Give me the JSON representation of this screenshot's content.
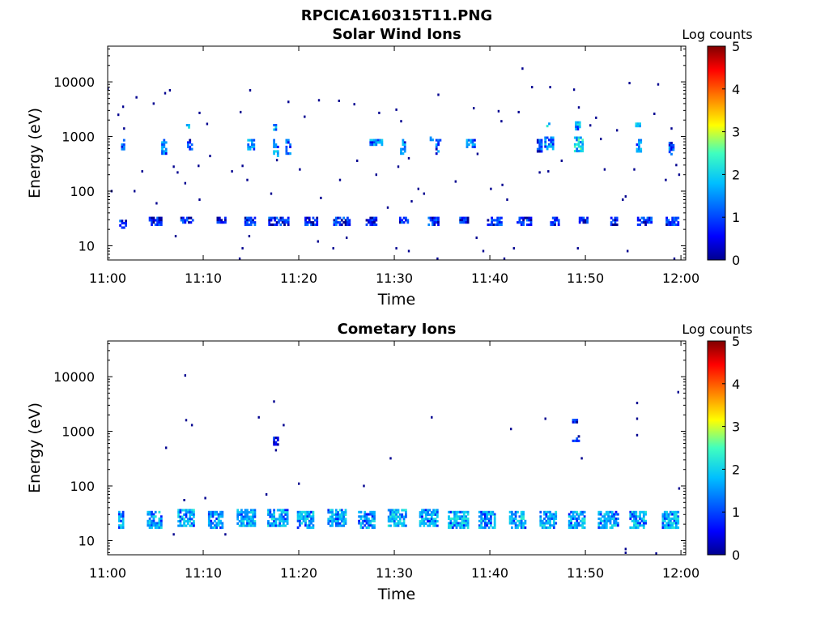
{
  "figure": {
    "title": "RPCICA160315T11.PNG"
  },
  "colorscale": {
    "stops": [
      "#00008f",
      "#0000ff",
      "#00bfff",
      "#40ffbf",
      "#ffff00",
      "#ff8000",
      "#ff0000",
      "#800000"
    ],
    "point_color": "#00008f"
  },
  "chart_data": [
    {
      "type": "heatmap",
      "title": "Solar Wind Ions",
      "xlabel": "Time",
      "ylabel": "Energy (eV)",
      "y_scale": "log",
      "ylim": [
        5.5,
        45000
      ],
      "xlim_minutes_after_11_00": [
        0,
        60.5
      ],
      "x_ticks": [
        "11:00",
        "11:10",
        "11:20",
        "11:30",
        "11:40",
        "11:50",
        "12:00"
      ],
      "y_ticks": [
        "10",
        "100",
        "1000",
        "10000"
      ],
      "colorbar": {
        "label": "Log counts",
        "range": [
          0,
          5
        ],
        "ticks": [
          "0",
          "1",
          "2",
          "3",
          "4",
          "5"
        ]
      },
      "clusters": [
        {
          "t": [
            1.2,
            1.8
          ],
          "e": [
            22,
            30
          ],
          "log_counts": 1.0
        },
        {
          "t": [
            4.3,
            5.6
          ],
          "e": [
            24,
            34
          ],
          "log_counts": 0.9
        },
        {
          "t": [
            7.6,
            8.8
          ],
          "e": [
            26,
            34
          ],
          "log_counts": 1.0
        },
        {
          "t": [
            11.4,
            12.2
          ],
          "e": [
            26,
            34
          ],
          "log_counts": 0.9
        },
        {
          "t": [
            14.3,
            15.3
          ],
          "e": [
            24,
            34
          ],
          "log_counts": 1.0
        },
        {
          "t": [
            16.8,
            18.9
          ],
          "e": [
            24,
            34
          ],
          "log_counts": 1.0
        },
        {
          "t": [
            20.6,
            21.8
          ],
          "e": [
            24,
            34
          ],
          "log_counts": 1.0
        },
        {
          "t": [
            23.6,
            25.3
          ],
          "e": [
            24,
            34
          ],
          "log_counts": 1.0
        },
        {
          "t": [
            27.0,
            28.0
          ],
          "e": [
            24,
            34
          ],
          "log_counts": 0.9
        },
        {
          "t": [
            30.5,
            31.3
          ],
          "e": [
            26,
            34
          ],
          "log_counts": 1.0
        },
        {
          "t": [
            33.5,
            34.6
          ],
          "e": [
            24,
            34
          ],
          "log_counts": 1.0
        },
        {
          "t": [
            36.8,
            37.6
          ],
          "e": [
            26,
            34
          ],
          "log_counts": 0.9
        },
        {
          "t": [
            39.5,
            41.2
          ],
          "e": [
            24,
            34
          ],
          "log_counts": 1.0
        },
        {
          "t": [
            42.8,
            44.2
          ],
          "e": [
            24,
            34
          ],
          "log_counts": 1.0
        },
        {
          "t": [
            46.3,
            47.2
          ],
          "e": [
            24,
            34
          ],
          "log_counts": 0.9
        },
        {
          "t": [
            49.3,
            50.2
          ],
          "e": [
            26,
            34
          ],
          "log_counts": 0.9
        },
        {
          "t": [
            52.6,
            53.3
          ],
          "e": [
            24,
            34
          ],
          "log_counts": 0.9
        },
        {
          "t": [
            55.4,
            56.9
          ],
          "e": [
            24,
            34
          ],
          "log_counts": 1.0
        },
        {
          "t": [
            58.4,
            59.6
          ],
          "e": [
            24,
            34
          ],
          "log_counts": 1.0
        },
        {
          "t": [
            1.4,
            1.7
          ],
          "e": [
            600,
            900
          ],
          "log_counts": 1.1
        },
        {
          "t": [
            5.6,
            6.0
          ],
          "e": [
            500,
            900
          ],
          "log_counts": 1.4
        },
        {
          "t": [
            8.3,
            8.7
          ],
          "e": [
            600,
            900
          ],
          "log_counts": 1.1
        },
        {
          "t": [
            14.6,
            15.3
          ],
          "e": [
            600,
            900
          ],
          "log_counts": 1.6
        },
        {
          "t": [
            17.3,
            17.7
          ],
          "e": [
            450,
            900
          ],
          "log_counts": 1.8
        },
        {
          "t": [
            18.6,
            19.0
          ],
          "e": [
            500,
            900
          ],
          "log_counts": 1.3
        },
        {
          "t": [
            27.4,
            28.6
          ],
          "e": [
            700,
            900
          ],
          "log_counts": 1.6
        },
        {
          "t": [
            30.6,
            31.0
          ],
          "e": [
            500,
            900
          ],
          "log_counts": 1.5
        },
        {
          "t": [
            33.7,
            34.0
          ],
          "e": [
            850,
            1100
          ],
          "log_counts": 1.7
        },
        {
          "t": [
            34.3,
            34.8
          ],
          "e": [
            500,
            900
          ],
          "log_counts": 1.3
        },
        {
          "t": [
            37.5,
            38.4
          ],
          "e": [
            650,
            900
          ],
          "log_counts": 1.5
        },
        {
          "t": [
            44.9,
            45.3
          ],
          "e": [
            550,
            900
          ],
          "log_counts": 1.2
        },
        {
          "t": [
            45.7,
            46.5
          ],
          "e": [
            600,
            1000
          ],
          "log_counts": 1.8
        },
        {
          "t": [
            48.8,
            49.6
          ],
          "e": [
            550,
            1000
          ],
          "log_counts": 2.3
        },
        {
          "t": [
            55.3,
            55.8
          ],
          "e": [
            550,
            900
          ],
          "log_counts": 1.7
        },
        {
          "t": [
            58.7,
            59.1
          ],
          "e": [
            500,
            800
          ],
          "log_counts": 1.3
        },
        {
          "t": [
            45.9,
            46.2
          ],
          "e": [
            1500,
            1800
          ],
          "log_counts": 1.9
        },
        {
          "t": [
            48.9,
            49.3
          ],
          "e": [
            1400,
            1900
          ],
          "log_counts": 1.9
        },
        {
          "t": [
            55.2,
            55.6
          ],
          "e": [
            1500,
            1800
          ],
          "log_counts": 1.8
        },
        {
          "t": [
            8.2,
            8.4
          ],
          "e": [
            1500,
            1700
          ],
          "log_counts": 1.9
        },
        {
          "t": [
            17.3,
            17.6
          ],
          "e": [
            1400,
            1700
          ],
          "log_counts": 1.6
        }
      ],
      "points": [
        [
          0.0,
          7500
        ],
        [
          0.4,
          100
        ],
        [
          1.1,
          2500
        ],
        [
          1.6,
          3500
        ],
        [
          1.7,
          1400
        ],
        [
          3.0,
          5200
        ],
        [
          4.8,
          4000
        ],
        [
          6.0,
          6200
        ],
        [
          6.5,
          7000
        ],
        [
          9.6,
          2700
        ],
        [
          10.4,
          1700
        ],
        [
          13.9,
          2800
        ],
        [
          14.9,
          7000
        ],
        [
          18.9,
          4300
        ],
        [
          20.6,
          2300
        ],
        [
          22.1,
          4600
        ],
        [
          24.2,
          4500
        ],
        [
          25.8,
          3900
        ],
        [
          28.4,
          2700
        ],
        [
          30.2,
          3100
        ],
        [
          30.7,
          1900
        ],
        [
          34.6,
          5800
        ],
        [
          38.3,
          3300
        ],
        [
          40.9,
          2900
        ],
        [
          41.2,
          1900
        ],
        [
          43.0,
          2800
        ],
        [
          43.4,
          17500
        ],
        [
          44.4,
          8000
        ],
        [
          46.3,
          8000
        ],
        [
          48.8,
          7200
        ],
        [
          49.3,
          3400
        ],
        [
          50.5,
          1600
        ],
        [
          51.1,
          2200
        ],
        [
          51.6,
          900
        ],
        [
          53.3,
          1300
        ],
        [
          54.6,
          9500
        ],
        [
          57.2,
          2600
        ],
        [
          57.6,
          9000
        ],
        [
          59.0,
          1400
        ],
        [
          59.5,
          300
        ],
        [
          3.6,
          230
        ],
        [
          6.9,
          280
        ],
        [
          8.1,
          140
        ],
        [
          9.5,
          290
        ],
        [
          10.7,
          440
        ],
        [
          13.0,
          230
        ],
        [
          14.1,
          290
        ],
        [
          14.6,
          160
        ],
        [
          17.7,
          370
        ],
        [
          20.1,
          250
        ],
        [
          24.3,
          160
        ],
        [
          26.1,
          360
        ],
        [
          28.1,
          200
        ],
        [
          30.4,
          280
        ],
        [
          31.5,
          400
        ],
        [
          32.5,
          110
        ],
        [
          33.1,
          90
        ],
        [
          36.4,
          150
        ],
        [
          38.7,
          480
        ],
        [
          41.3,
          130
        ],
        [
          45.2,
          220
        ],
        [
          46.1,
          230
        ],
        [
          47.5,
          360
        ],
        [
          52.0,
          250
        ],
        [
          53.9,
          70
        ],
        [
          54.2,
          80
        ],
        [
          55.1,
          250
        ],
        [
          58.4,
          160
        ],
        [
          59.8,
          200
        ],
        [
          2.8,
          100
        ],
        [
          5.1,
          60
        ],
        [
          7.3,
          220
        ],
        [
          9.6,
          70
        ],
        [
          17.1,
          90
        ],
        [
          22.3,
          75
        ],
        [
          29.3,
          50
        ],
        [
          31.8,
          65
        ],
        [
          40.1,
          110
        ],
        [
          41.8,
          70
        ],
        [
          7.1,
          15
        ],
        [
          13.8,
          5.8
        ],
        [
          14.1,
          9
        ],
        [
          14.8,
          15
        ],
        [
          22.0,
          12
        ],
        [
          23.6,
          9
        ],
        [
          25.0,
          14
        ],
        [
          30.2,
          9
        ],
        [
          31.5,
          8
        ],
        [
          34.5,
          5.8
        ],
        [
          38.6,
          14
        ],
        [
          39.3,
          8
        ],
        [
          41.5,
          5.8
        ],
        [
          42.5,
          9
        ],
        [
          49.2,
          9
        ],
        [
          54.4,
          8
        ],
        [
          59.3,
          5.8
        ]
      ]
    },
    {
      "type": "heatmap",
      "title": "Cometary Ions",
      "xlabel": "Time",
      "ylabel": "Energy (eV)",
      "y_scale": "log",
      "ylim": [
        5.5,
        45000
      ],
      "xlim_minutes_after_11_00": [
        0,
        60.5
      ],
      "x_ticks": [
        "11:00",
        "11:10",
        "11:20",
        "11:30",
        "11:40",
        "11:50",
        "12:00"
      ],
      "y_ticks": [
        "10",
        "100",
        "1000",
        "10000"
      ],
      "colorbar": {
        "label": "Log counts",
        "range": [
          0,
          5
        ],
        "ticks": [
          "0",
          "1",
          "2",
          "3",
          "4",
          "5"
        ]
      },
      "clusters": [
        {
          "t": [
            1.1,
            1.5
          ],
          "e": [
            18,
            35
          ],
          "log_counts": 1.9
        },
        {
          "t": [
            4.1,
            5.6
          ],
          "e": [
            18,
            35
          ],
          "log_counts": 1.8
        },
        {
          "t": [
            7.3,
            9.0
          ],
          "e": [
            18,
            38
          ],
          "log_counts": 1.9
        },
        {
          "t": [
            10.5,
            12.0
          ],
          "e": [
            18,
            35
          ],
          "log_counts": 1.8
        },
        {
          "t": [
            13.5,
            15.4
          ],
          "e": [
            18,
            38
          ],
          "log_counts": 1.8
        },
        {
          "t": [
            16.7,
            18.7
          ],
          "e": [
            18,
            38
          ],
          "log_counts": 1.9
        },
        {
          "t": [
            19.8,
            21.4
          ],
          "e": [
            18,
            35
          ],
          "log_counts": 1.8
        },
        {
          "t": [
            23.0,
            24.8
          ],
          "e": [
            18,
            38
          ],
          "log_counts": 1.9
        },
        {
          "t": [
            26.2,
            27.8
          ],
          "e": [
            18,
            35
          ],
          "log_counts": 1.8
        },
        {
          "t": [
            29.3,
            31.2
          ],
          "e": [
            18,
            38
          ],
          "log_counts": 1.9
        },
        {
          "t": [
            32.6,
            34.4
          ],
          "e": [
            18,
            38
          ],
          "log_counts": 1.8
        },
        {
          "t": [
            35.6,
            37.6
          ],
          "e": [
            18,
            35
          ],
          "log_counts": 1.9
        },
        {
          "t": [
            38.8,
            40.5
          ],
          "e": [
            18,
            35
          ],
          "log_counts": 1.8
        },
        {
          "t": [
            42.0,
            43.6
          ],
          "e": [
            18,
            35
          ],
          "log_counts": 1.9
        },
        {
          "t": [
            45.2,
            46.8
          ],
          "e": [
            18,
            35
          ],
          "log_counts": 1.8
        },
        {
          "t": [
            48.2,
            49.8
          ],
          "e": [
            18,
            35
          ],
          "log_counts": 1.9
        },
        {
          "t": [
            51.3,
            53.3
          ],
          "e": [
            18,
            35
          ],
          "log_counts": 1.8
        },
        {
          "t": [
            54.6,
            56.2
          ],
          "e": [
            18,
            35
          ],
          "log_counts": 1.9
        },
        {
          "t": [
            58.0,
            59.7
          ],
          "e": [
            18,
            35
          ],
          "log_counts": 1.8
        },
        {
          "t": [
            17.3,
            17.7
          ],
          "e": [
            550,
            800
          ],
          "log_counts": 0.8
        },
        {
          "t": [
            48.6,
            49.2
          ],
          "e": [
            700,
            850
          ],
          "log_counts": 0.8
        },
        {
          "t": [
            48.6,
            49.1
          ],
          "e": [
            1500,
            1700
          ],
          "log_counts": 0.8
        }
      ],
      "points": [
        [
          8.1,
          10500
        ],
        [
          8.2,
          1600
        ],
        [
          8.8,
          1300
        ],
        [
          6.1,
          500
        ],
        [
          15.8,
          1800
        ],
        [
          17.4,
          3500
        ],
        [
          17.6,
          450
        ],
        [
          18.4,
          1300
        ],
        [
          20.0,
          110
        ],
        [
          26.8,
          100
        ],
        [
          29.6,
          320
        ],
        [
          33.9,
          1800
        ],
        [
          42.2,
          1100
        ],
        [
          45.8,
          1700
        ],
        [
          49.6,
          320
        ],
        [
          55.4,
          3300
        ],
        [
          55.4,
          1700
        ],
        [
          55.4,
          850
        ],
        [
          59.7,
          5200
        ],
        [
          59.8,
          90
        ],
        [
          54.2,
          7
        ],
        [
          54.2,
          6
        ],
        [
          57.4,
          5.8
        ],
        [
          6.9,
          13
        ],
        [
          12.3,
          13
        ],
        [
          16.6,
          70
        ],
        [
          8.0,
          55
        ],
        [
          10.2,
          60
        ]
      ]
    }
  ]
}
